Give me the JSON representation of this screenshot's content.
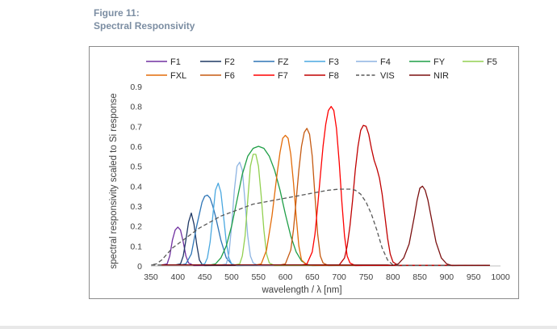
{
  "figure": {
    "label": "Figure 11:",
    "title": "Spectral Responsivity"
  },
  "chart_data": {
    "type": "line",
    "xlabel": "wavelength / λ [nm]",
    "ylabel": "spectral responsivity scaled to Si response",
    "xlim": [
      350,
      1000
    ],
    "ylim": [
      0,
      0.9
    ],
    "xticks": [
      "350",
      "400",
      "450",
      "500",
      "550",
      "600",
      "650",
      "700",
      "750",
      "800",
      "850",
      "900",
      "950",
      "1000"
    ],
    "yticks": [
      "0",
      "0.1",
      "0.2",
      "0.3",
      "0.4",
      "0.5",
      "0.6",
      "0.7",
      "0.8",
      "0.9"
    ],
    "grid": false,
    "legend_position": "top",
    "series": [
      {
        "name": "F1",
        "color": "#7030a0",
        "dash": "",
        "x": [
          380,
          385,
          390,
          395,
          400,
          405,
          410,
          415,
          420,
          430
        ],
        "y": [
          0.01,
          0.05,
          0.13,
          0.18,
          0.195,
          0.18,
          0.12,
          0.05,
          0.015,
          0.002
        ]
      },
      {
        "name": "F2",
        "color": "#1f3864",
        "dash": "",
        "x": [
          405,
          410,
          415,
          420,
          425,
          430,
          435,
          440,
          445,
          450
        ],
        "y": [
          0.01,
          0.05,
          0.13,
          0.22,
          0.265,
          0.21,
          0.11,
          0.03,
          0.008,
          0.002
        ]
      },
      {
        "name": "FZ",
        "color": "#2e75b6",
        "dash": "",
        "x": [
          415,
          425,
          435,
          445,
          450,
          455,
          460,
          465,
          470,
          480,
          490,
          500,
          510
        ],
        "y": [
          0.01,
          0.06,
          0.2,
          0.32,
          0.35,
          0.355,
          0.34,
          0.3,
          0.25,
          0.13,
          0.04,
          0.01,
          0.002
        ]
      },
      {
        "name": "F3",
        "color": "#4aa8e0",
        "dash": "",
        "x": [
          450,
          455,
          460,
          465,
          470,
          475,
          480,
          485,
          490,
          495,
          500,
          510
        ],
        "y": [
          0.01,
          0.04,
          0.12,
          0.25,
          0.38,
          0.415,
          0.37,
          0.25,
          0.12,
          0.04,
          0.01,
          0.002
        ]
      },
      {
        "name": "F4",
        "color": "#8db4e2",
        "dash": "",
        "x": [
          490,
          495,
          500,
          505,
          510,
          515,
          520,
          525,
          530,
          535,
          540,
          550
        ],
        "y": [
          0.01,
          0.06,
          0.2,
          0.38,
          0.5,
          0.52,
          0.48,
          0.32,
          0.15,
          0.05,
          0.015,
          0.002
        ]
      },
      {
        "name": "FY",
        "color": "#1e9e46",
        "dash": "",
        "x": [
          470,
          480,
          490,
          500,
          510,
          520,
          530,
          540,
          550,
          560,
          570,
          580,
          590,
          600,
          610,
          620,
          630,
          640,
          650
        ],
        "y": [
          0.01,
          0.04,
          0.1,
          0.2,
          0.33,
          0.46,
          0.55,
          0.59,
          0.6,
          0.59,
          0.55,
          0.48,
          0.38,
          0.26,
          0.15,
          0.07,
          0.025,
          0.008,
          0.002
        ]
      },
      {
        "name": "F5",
        "color": "#92d050",
        "dash": "",
        "x": [
          515,
          520,
          525,
          530,
          535,
          540,
          545,
          550,
          555,
          560,
          565,
          570,
          580
        ],
        "y": [
          0.01,
          0.05,
          0.15,
          0.33,
          0.5,
          0.56,
          0.56,
          0.5,
          0.35,
          0.18,
          0.06,
          0.015,
          0.002
        ]
      },
      {
        "name": "FXL",
        "color": "#e36c09",
        "dash": "",
        "x": [
          555,
          565,
          575,
          580,
          585,
          590,
          595,
          600,
          605,
          610,
          615,
          620,
          625,
          630,
          640
        ],
        "y": [
          0.01,
          0.08,
          0.25,
          0.36,
          0.47,
          0.57,
          0.64,
          0.655,
          0.64,
          0.56,
          0.42,
          0.25,
          0.1,
          0.03,
          0.005
        ]
      },
      {
        "name": "F6",
        "color": "#c55a11",
        "dash": "",
        "x": [
          600,
          610,
          615,
          620,
          625,
          630,
          635,
          640,
          645,
          650,
          655,
          660,
          665,
          670,
          680
        ],
        "y": [
          0.01,
          0.08,
          0.18,
          0.33,
          0.48,
          0.6,
          0.67,
          0.69,
          0.66,
          0.55,
          0.35,
          0.16,
          0.05,
          0.015,
          0.002
        ]
      },
      {
        "name": "F7",
        "color": "#ff0000",
        "dash": "",
        "x": [
          640,
          650,
          655,
          660,
          665,
          670,
          675,
          680,
          685,
          690,
          695,
          700,
          705,
          710,
          715,
          720,
          730
        ],
        "y": [
          0.01,
          0.07,
          0.16,
          0.3,
          0.45,
          0.6,
          0.71,
          0.78,
          0.8,
          0.78,
          0.69,
          0.52,
          0.32,
          0.15,
          0.05,
          0.015,
          0.002
        ]
      },
      {
        "name": "F8",
        "color": "#c00000",
        "dash": "",
        "x": [
          700,
          710,
          715,
          720,
          725,
          730,
          735,
          740,
          745,
          750,
          755,
          760,
          765,
          770,
          775,
          780,
          785,
          790,
          795,
          800,
          810
        ],
        "y": [
          0.005,
          0.04,
          0.1,
          0.2,
          0.33,
          0.48,
          0.6,
          0.68,
          0.705,
          0.7,
          0.66,
          0.59,
          0.53,
          0.49,
          0.44,
          0.36,
          0.25,
          0.14,
          0.06,
          0.02,
          0.002
        ]
      },
      {
        "name": "VIS",
        "color": "#595959",
        "dash": "5,3",
        "x": [
          360,
          370,
          380,
          390,
          400,
          420,
          440,
          460,
          480,
          500,
          520,
          540,
          560,
          580,
          600,
          620,
          640,
          660,
          680,
          700,
          710,
          720,
          730,
          740,
          750,
          760,
          770,
          780,
          790,
          800
        ],
        "y": [
          0.01,
          0.03,
          0.06,
          0.09,
          0.11,
          0.15,
          0.19,
          0.22,
          0.25,
          0.27,
          0.29,
          0.31,
          0.32,
          0.33,
          0.34,
          0.35,
          0.36,
          0.37,
          0.38,
          0.385,
          0.385,
          0.385,
          0.38,
          0.36,
          0.32,
          0.26,
          0.18,
          0.09,
          0.03,
          0.005
        ]
      },
      {
        "name": "NIR",
        "color": "#7b1010",
        "dash": "",
        "x": [
          800,
          810,
          820,
          830,
          840,
          845,
          850,
          855,
          860,
          865,
          870,
          880,
          890,
          900,
          910
        ],
        "y": [
          0.003,
          0.01,
          0.04,
          0.11,
          0.25,
          0.33,
          0.39,
          0.4,
          0.38,
          0.33,
          0.26,
          0.12,
          0.04,
          0.01,
          0.002
        ]
      }
    ]
  }
}
